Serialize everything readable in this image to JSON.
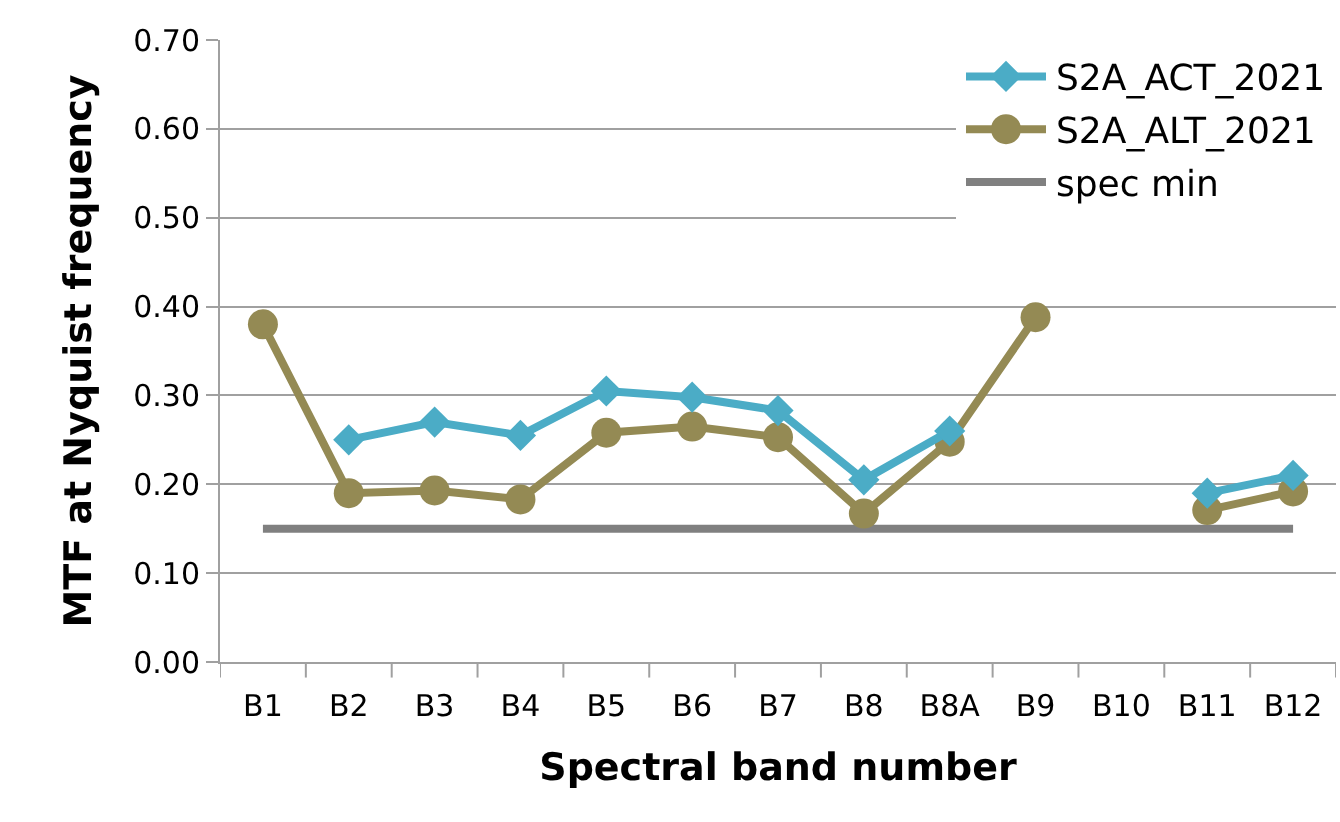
{
  "chart_data": {
    "type": "line",
    "xlabel": "Spectral band number",
    "ylabel": "MTF at Nyquist frequency",
    "categories": [
      "B1",
      "B2",
      "B3",
      "B4",
      "B5",
      "B6",
      "B7",
      "B8",
      "B8A",
      "B9",
      "B10",
      "B11",
      "B12"
    ],
    "series": [
      {
        "name": "S2A_ACT_2021",
        "color": "#4bacc6",
        "marker": "diamond",
        "values": [
          null,
          0.25,
          0.27,
          0.255,
          0.305,
          0.298,
          0.283,
          0.205,
          0.26,
          null,
          null,
          0.19,
          0.21
        ]
      },
      {
        "name": "S2A_ALT_2021",
        "color": "#948a54",
        "marker": "circle",
        "values": [
          0.38,
          0.19,
          0.193,
          0.183,
          0.258,
          0.265,
          0.253,
          0.167,
          0.248,
          0.388,
          null,
          0.171,
          0.192
        ]
      },
      {
        "name": "spec min",
        "color": "#808080",
        "marker": "none",
        "values": [
          0.15,
          0.15,
          0.15,
          0.15,
          0.15,
          0.15,
          0.15,
          0.15,
          0.15,
          0.15,
          0.15,
          0.15,
          0.15
        ]
      }
    ],
    "ylim": [
      0,
      0.7
    ],
    "yticks": [
      {
        "value": 0,
        "label": "0.00"
      },
      {
        "value": 0.1,
        "label": "0.10"
      },
      {
        "value": 0.2,
        "label": "0.20"
      },
      {
        "value": 0.3,
        "label": "0.30"
      },
      {
        "value": 0.4,
        "label": "0.40"
      },
      {
        "value": 0.5,
        "label": "0.50"
      },
      {
        "value": 0.6,
        "label": "0.60"
      },
      {
        "value": 0.7,
        "label": "0.70"
      }
    ],
    "grid": "y",
    "legend": "top right",
    "line_style": "solid"
  }
}
